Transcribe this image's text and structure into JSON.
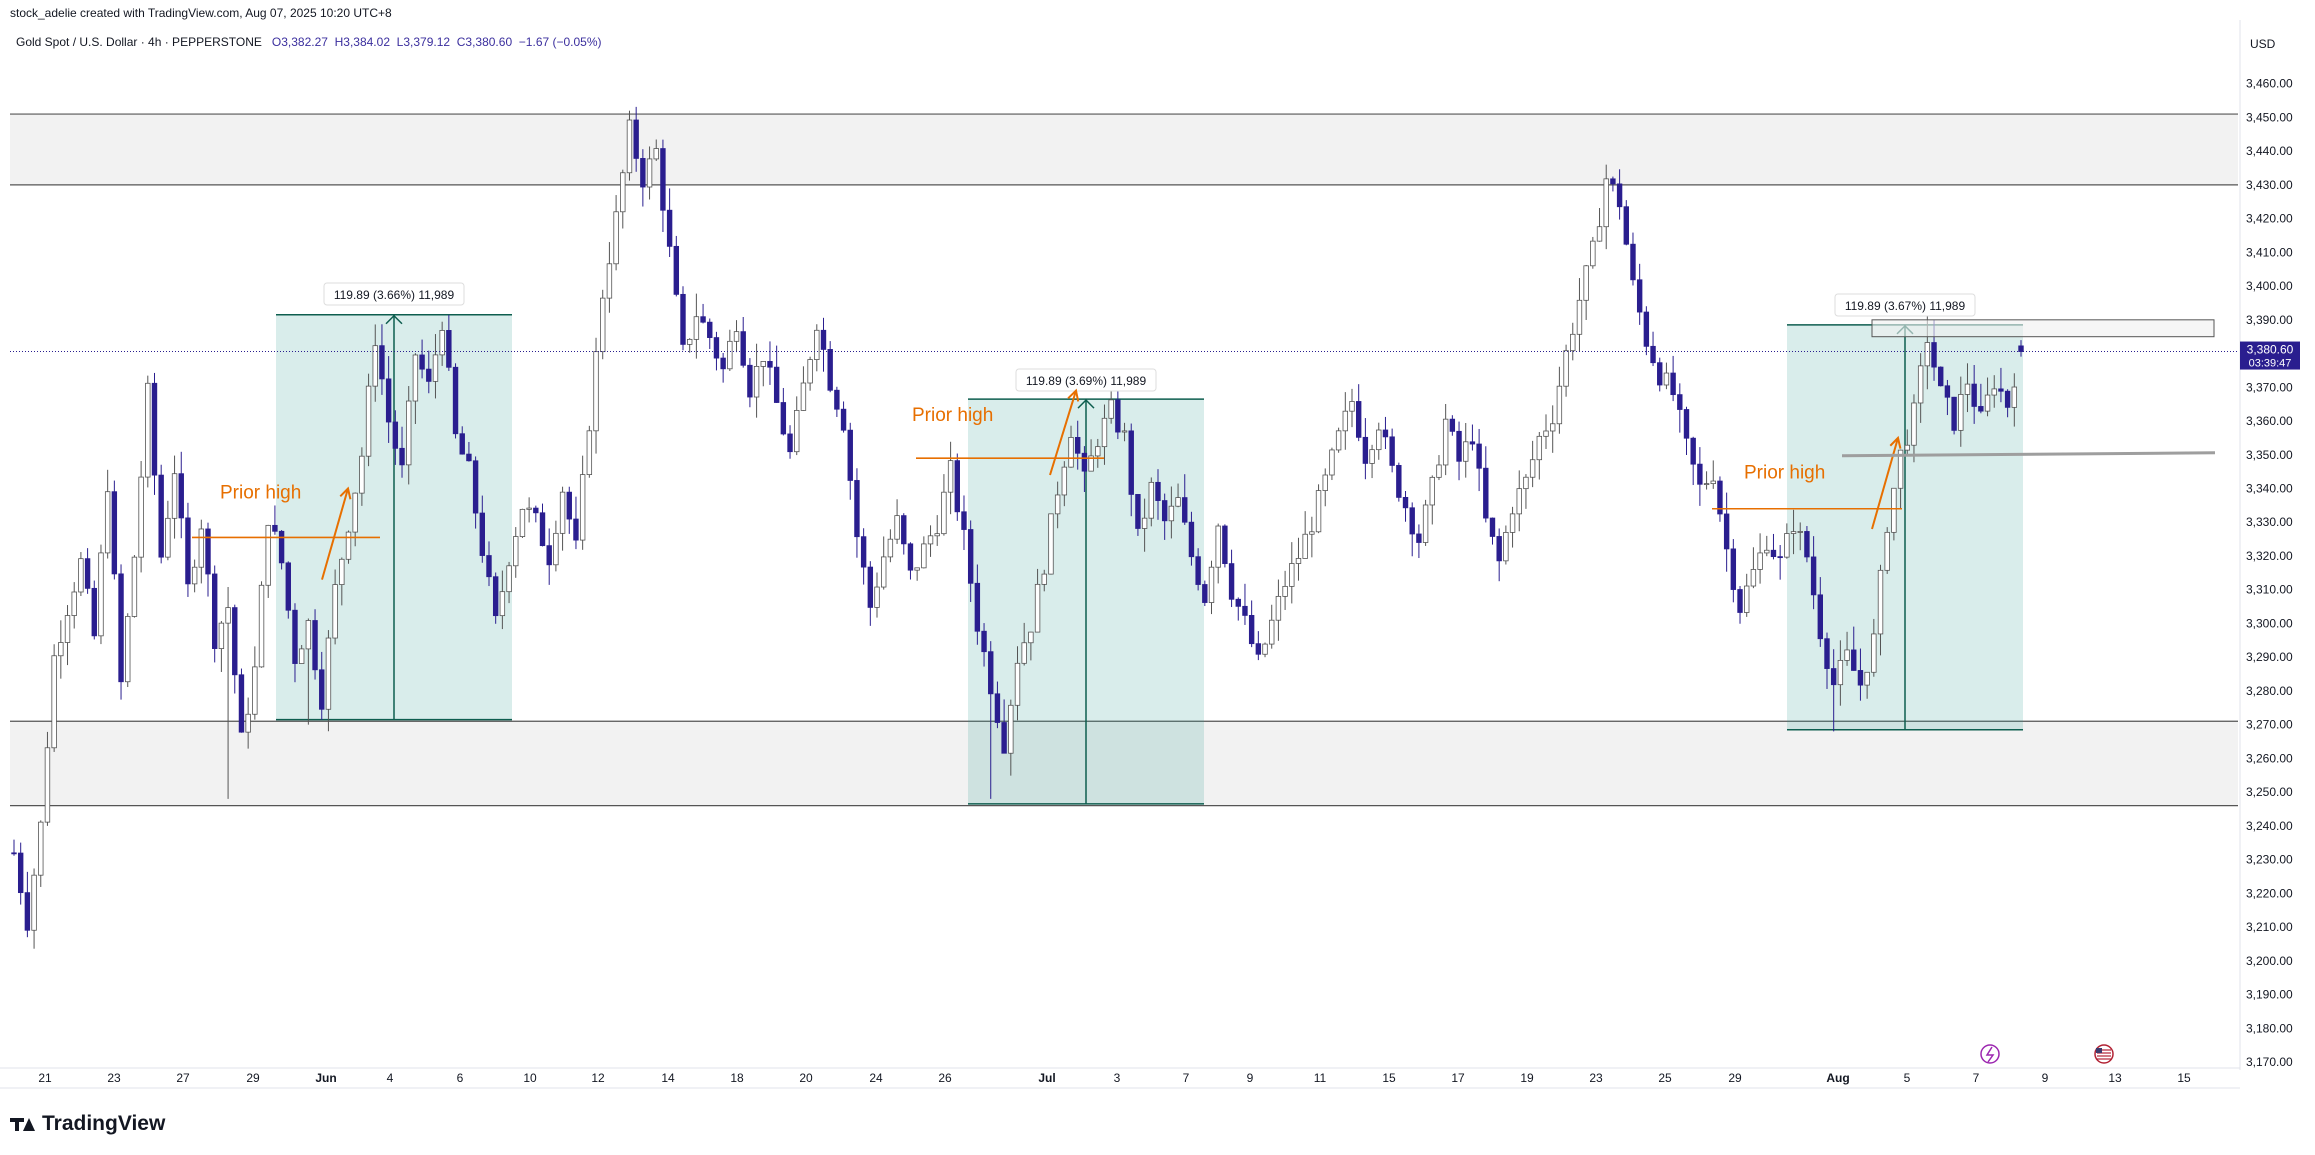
{
  "header": {
    "created_by": "stock_adelie created with TradingView.com, Aug 07, 2025 10:20 UTC+8"
  },
  "legend": {
    "symbol": "Gold Spot / U.S. Dollar · 4h · PEPPERSTONE",
    "open": "O3,382.27",
    "high": "H3,384.02",
    "low": "L3,379.12",
    "close": "C3,380.60",
    "change": "−1.67 (−0.05%)"
  },
  "price_scale": {
    "currency": "USD",
    "last_price": "3,380.60",
    "countdown": "03:39:47"
  },
  "colors": {
    "bull": "#ffffff",
    "bear": "#2a1e8f",
    "wick": "#444444",
    "measure_fill": "#2a9d8f",
    "measure_line": "#0e5e4f",
    "annotation": "#e76f00",
    "zone_fill": "#f2f2f2",
    "zone_line": "#555555",
    "price_tag": "#2a1e8f"
  },
  "annotations": [
    {
      "label": "Prior high"
    },
    {
      "label": "Prior high"
    },
    {
      "label": "Prior high"
    }
  ],
  "measures": [
    {
      "label": "119.89 (3.66%) 11,989"
    },
    {
      "label": "119.89 (3.69%) 11,989"
    },
    {
      "label": "119.89 (3.67%) 11,989"
    }
  ],
  "footer": {
    "brand": "TradingView"
  },
  "event_icons": [
    "lightning-icon",
    "us-flag-icon"
  ],
  "chart_data": {
    "type": "candlestick",
    "title": "Gold Spot / U.S. Dollar · 4h · PEPPERSTONE",
    "ylim": [
      3165,
      3470
    ],
    "y_ticks": [
      "3,170.00",
      "3,180.00",
      "3,190.00",
      "3,200.00",
      "3,210.00",
      "3,220.00",
      "3,230.00",
      "3,240.00",
      "3,250.00",
      "3,260.00",
      "3,270.00",
      "3,280.00",
      "3,290.00",
      "3,300.00",
      "3,310.00",
      "3,320.00",
      "3,330.00",
      "3,340.00",
      "3,350.00",
      "3,360.00",
      "3,370.00",
      "3,380.00",
      "3,390.00",
      "3,400.00",
      "3,410.00",
      "3,420.00",
      "3,430.00",
      "3,440.00",
      "3,450.00",
      "3,460.00"
    ],
    "x_ticks": [
      "21",
      "23",
      "27",
      "29",
      "Jun",
      "4",
      "6",
      "10",
      "12",
      "14",
      "18",
      "20",
      "24",
      "26",
      "Jul",
      "3",
      "7",
      "9",
      "11",
      "15",
      "17",
      "19",
      "23",
      "25",
      "29",
      "Aug",
      "5",
      "7",
      "9",
      "13",
      "15"
    ],
    "zones": [
      {
        "name": "resistance",
        "low": 3430,
        "high": 3451
      },
      {
        "name": "support",
        "low": 3246,
        "high": 3271
      }
    ],
    "levels": [
      {
        "name": "last-price",
        "value": 3380.6
      },
      {
        "name": "breakout-level",
        "value": 3350
      }
    ],
    "path": [
      [
        0,
        3232
      ],
      [
        2,
        3212
      ],
      [
        4,
        3240
      ],
      [
        6,
        3290
      ],
      [
        8,
        3305
      ],
      [
        10,
        3318
      ],
      [
        12,
        3296
      ],
      [
        14,
        3342
      ],
      [
        16,
        3282
      ],
      [
        18,
        3320
      ],
      [
        20,
        3368
      ],
      [
        22,
        3320
      ],
      [
        24,
        3346
      ],
      [
        26,
        3310
      ],
      [
        28,
        3330
      ],
      [
        30,
        3296
      ],
      [
        32,
        3305
      ],
      [
        34,
        3265
      ],
      [
        36,
        3286
      ],
      [
        38,
        3332
      ],
      [
        40,
        3318
      ],
      [
        42,
        3290
      ],
      [
        44,
        3300
      ],
      [
        46,
        3278
      ],
      [
        48,
        3310
      ],
      [
        50,
        3330
      ],
      [
        52,
        3350
      ],
      [
        54,
        3385
      ],
      [
        56,
        3360
      ],
      [
        58,
        3345
      ],
      [
        60,
        3380
      ],
      [
        62,
        3370
      ],
      [
        64,
        3390
      ],
      [
        66,
        3355
      ],
      [
        68,
        3345
      ],
      [
        70,
        3322
      ],
      [
        72,
        3300
      ],
      [
        74,
        3320
      ],
      [
        76,
        3335
      ],
      [
        78,
        3330
      ],
      [
        80,
        3320
      ],
      [
        82,
        3340
      ],
      [
        84,
        3322
      ],
      [
        86,
        3360
      ],
      [
        88,
        3398
      ],
      [
        90,
        3420
      ],
      [
        92,
        3446
      ],
      [
        94,
        3432
      ],
      [
        96,
        3440
      ],
      [
        98,
        3410
      ],
      [
        100,
        3380
      ],
      [
        102,
        3392
      ],
      [
        104,
        3385
      ],
      [
        106,
        3375
      ],
      [
        108,
        3390
      ],
      [
        110,
        3370
      ],
      [
        112,
        3380
      ],
      [
        114,
        3365
      ],
      [
        116,
        3350
      ],
      [
        118,
        3370
      ],
      [
        120,
        3390
      ],
      [
        122,
        3372
      ],
      [
        124,
        3360
      ],
      [
        126,
        3326
      ],
      [
        128,
        3305
      ],
      [
        130,
        3320
      ],
      [
        132,
        3330
      ],
      [
        134,
        3314
      ],
      [
        136,
        3322
      ],
      [
        138,
        3330
      ],
      [
        140,
        3345
      ],
      [
        142,
        3325
      ],
      [
        144,
        3300
      ],
      [
        146,
        3282
      ],
      [
        148,
        3265
      ],
      [
        150,
        3290
      ],
      [
        152,
        3300
      ],
      [
        154,
        3318
      ],
      [
        156,
        3340
      ],
      [
        158,
        3358
      ],
      [
        160,
        3342
      ],
      [
        162,
        3355
      ],
      [
        164,
        3363
      ],
      [
        166,
        3355
      ],
      [
        168,
        3325
      ],
      [
        170,
        3340
      ],
      [
        172,
        3330
      ],
      [
        174,
        3336
      ],
      [
        176,
        3320
      ],
      [
        178,
        3308
      ],
      [
        180,
        3330
      ],
      [
        182,
        3310
      ],
      [
        184,
        3300
      ],
      [
        186,
        3288
      ],
      [
        188,
        3300
      ],
      [
        190,
        3312
      ],
      [
        192,
        3320
      ],
      [
        194,
        3330
      ],
      [
        196,
        3342
      ],
      [
        198,
        3355
      ],
      [
        200,
        3366
      ],
      [
        202,
        3350
      ],
      [
        204,
        3360
      ],
      [
        206,
        3345
      ],
      [
        208,
        3335
      ],
      [
        210,
        3325
      ],
      [
        212,
        3340
      ],
      [
        214,
        3360
      ],
      [
        216,
        3348
      ],
      [
        218,
        3356
      ],
      [
        220,
        3330
      ],
      [
        222,
        3318
      ],
      [
        224,
        3335
      ],
      [
        226,
        3342
      ],
      [
        228,
        3355
      ],
      [
        230,
        3362
      ],
      [
        232,
        3380
      ],
      [
        234,
        3396
      ],
      [
        236,
        3410
      ],
      [
        238,
        3432
      ],
      [
        240,
        3425
      ],
      [
        242,
        3400
      ],
      [
        244,
        3384
      ],
      [
        246,
        3374
      ],
      [
        248,
        3368
      ],
      [
        250,
        3352
      ],
      [
        252,
        3340
      ],
      [
        254,
        3345
      ],
      [
        256,
        3322
      ],
      [
        258,
        3305
      ],
      [
        260,
        3315
      ],
      [
        262,
        3325
      ],
      [
        264,
        3318
      ],
      [
        266,
        3330
      ],
      [
        268,
        3320
      ],
      [
        270,
        3298
      ],
      [
        272,
        3282
      ],
      [
        274,
        3290
      ],
      [
        276,
        3282
      ],
      [
        278,
        3295
      ],
      [
        280,
        3330
      ],
      [
        282,
        3350
      ],
      [
        284,
        3362
      ],
      [
        286,
        3385
      ],
      [
        288,
        3368
      ],
      [
        290,
        3360
      ],
      [
        292,
        3372
      ],
      [
        294,
        3360
      ],
      [
        296,
        3372
      ],
      [
        298,
        3365
      ],
      [
        300,
        3382
      ]
    ]
  }
}
